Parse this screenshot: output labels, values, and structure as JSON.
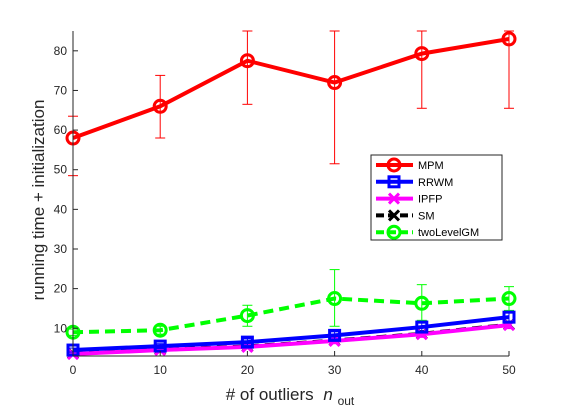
{
  "chart_data": {
    "type": "line",
    "title": "",
    "xlabel": "# of outliers",
    "xlabel_italic": "n",
    "xlabel_sub": "out",
    "ylabel": "running time + initialization",
    "xlim": [
      0,
      50
    ],
    "ylim": [
      3,
      85
    ],
    "xticks": [
      0,
      10,
      20,
      30,
      40,
      50
    ],
    "yticks": [
      10,
      20,
      30,
      40,
      50,
      60,
      70,
      80
    ],
    "grid": false,
    "legend_position": "right-center",
    "x": [
      0,
      10,
      20,
      30,
      40,
      50
    ],
    "series": [
      {
        "name": "MPM",
        "color": "#ff0000",
        "marker": "circle",
        "line": "solid",
        "values": [
          58.0,
          66.0,
          77.5,
          72.0,
          79.3,
          83.0
        ],
        "err_low": [
          48.5,
          58.0,
          66.5,
          51.5,
          65.5,
          65.5
        ],
        "err_high": [
          63.5,
          73.8,
          85.0,
          85.0,
          85.0,
          85.0
        ]
      },
      {
        "name": "RRWM",
        "color": "#0000ff",
        "marker": "square",
        "line": "solid",
        "values": [
          4.5,
          5.5,
          6.5,
          8.2,
          10.3,
          12.8
        ],
        "err_low": [
          4.0,
          4.9,
          5.7,
          7.3,
          9.3,
          11.5
        ],
        "err_high": [
          5.0,
          6.1,
          7.3,
          9.1,
          11.3,
          14.1
        ]
      },
      {
        "name": "IPFP",
        "color": "#ff00ff",
        "marker": "x",
        "line": "solid",
        "values": [
          3.5,
          4.5,
          5.3,
          6.8,
          8.5,
          10.8
        ],
        "err_low": [
          3.2,
          4.1,
          4.8,
          6.1,
          7.7,
          9.9
        ],
        "err_high": [
          3.8,
          4.9,
          5.8,
          7.5,
          9.3,
          11.7
        ]
      },
      {
        "name": "SM",
        "color": "#000000",
        "marker": "x",
        "line": "dashed",
        "values": [
          3.6,
          4.6,
          5.4,
          6.9,
          8.6,
          10.9
        ],
        "err_low": [
          3.3,
          4.2,
          4.9,
          6.2,
          7.8,
          10.0
        ],
        "err_high": [
          3.9,
          5.0,
          5.9,
          7.6,
          9.4,
          11.8
        ]
      },
      {
        "name": "twoLevelGM",
        "color": "#00ff00",
        "marker": "circle",
        "line": "dashed",
        "values": [
          9.0,
          9.5,
          13.2,
          17.5,
          16.3,
          17.5
        ],
        "err_low": [
          8.2,
          8.5,
          10.5,
          10.5,
          12.0,
          14.5
        ],
        "err_high": [
          9.8,
          10.5,
          15.8,
          24.8,
          21.0,
          20.5
        ]
      }
    ]
  }
}
